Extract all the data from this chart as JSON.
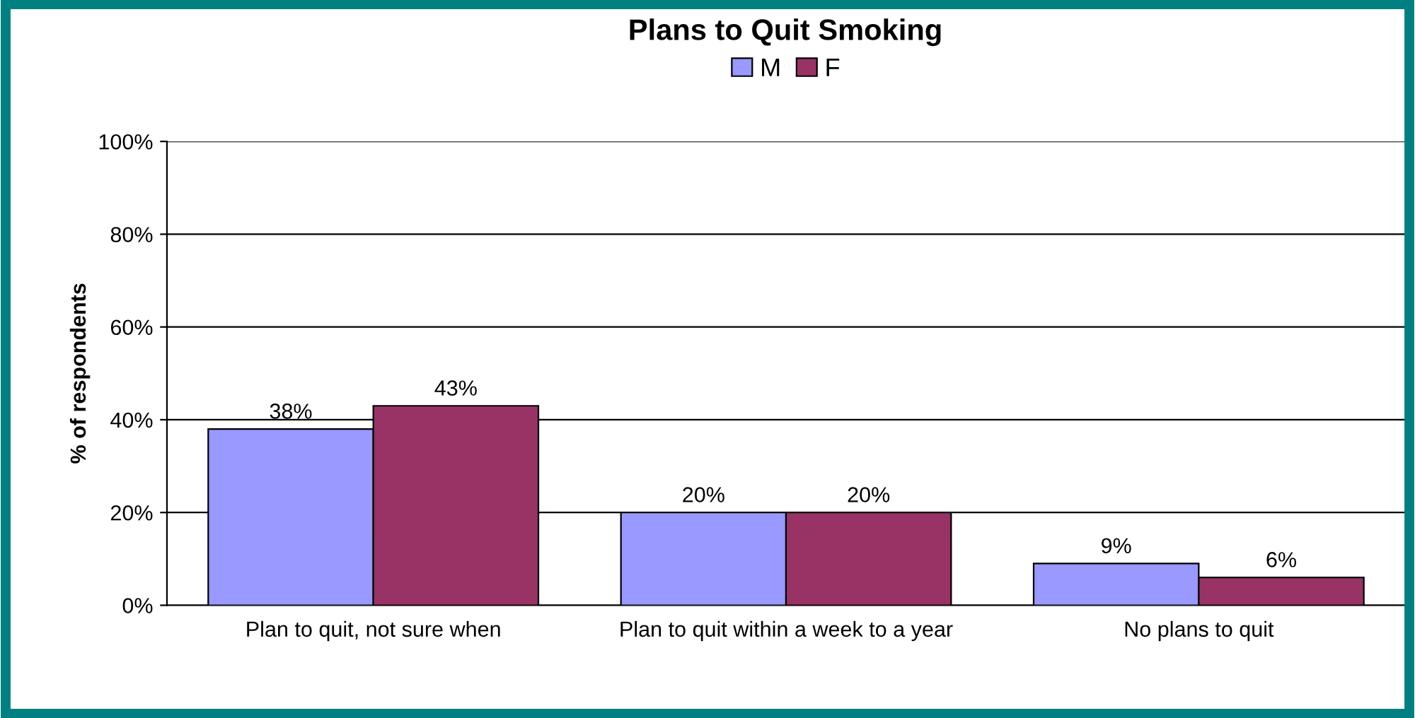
{
  "chart_data": {
    "type": "bar",
    "title": "Plans to Quit Smoking",
    "ylabel": "% of respondents",
    "categories": [
      "Plan to quit, not sure when",
      "Plan to quit within a week to a year",
      "No plans to quit"
    ],
    "series": [
      {
        "name": "M",
        "color": "#9999ff",
        "values": [
          38,
          20,
          9
        ],
        "value_labels": [
          "38%",
          "20%",
          "9%"
        ]
      },
      {
        "name": "F",
        "color": "#993366",
        "values": [
          43,
          20,
          6
        ],
        "value_labels": [
          "43%",
          "20%",
          "6%"
        ]
      }
    ],
    "ylim": [
      0,
      100
    ],
    "yticks": [
      {
        "value": 0,
        "label": "0%"
      },
      {
        "value": 20,
        "label": "20%"
      },
      {
        "value": 40,
        "label": "40%"
      },
      {
        "value": 60,
        "label": "60%"
      },
      {
        "value": 80,
        "label": "80%"
      },
      {
        "value": 100,
        "label": "100%"
      }
    ],
    "grid": "y",
    "legend": "top"
  }
}
